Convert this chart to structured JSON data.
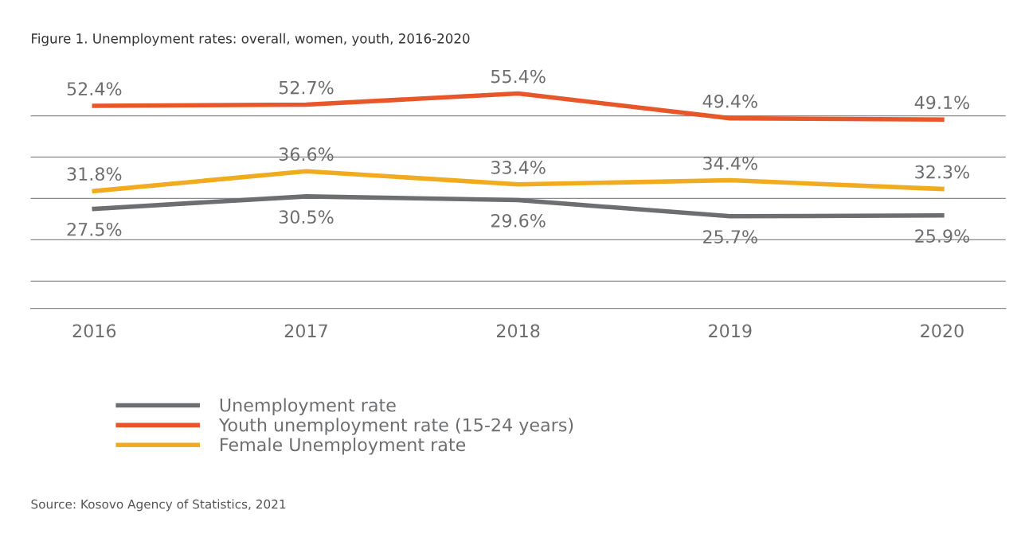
{
  "chart_data": {
    "type": "line",
    "title": "Figure 1. Unemployment rates: overall, women, youth, 2016-2020",
    "categories": [
      "2016",
      "2017",
      "2018",
      "2019",
      "2020"
    ],
    "series": [
      {
        "name": "Unemployment rate",
        "color": "#6d6e70",
        "values": [
          27.5,
          30.5,
          29.6,
          25.7,
          25.9
        ],
        "value_labels": [
          "27.5%",
          "30.5%",
          "29.6%",
          "25.7%",
          "25.9%"
        ]
      },
      {
        "name": "Youth unemployment rate (15-24 years)",
        "color": "#e8572a",
        "values": [
          52.4,
          52.7,
          55.4,
          49.4,
          49.1
        ],
        "value_labels": [
          "52.4%",
          "52.7%",
          "55.4%",
          "49.4%",
          "49.1%"
        ]
      },
      {
        "name": "Female Unemployment rate",
        "color": "#f0ab1e",
        "values": [
          31.8,
          36.6,
          33.4,
          34.4,
          32.3
        ],
        "value_labels": [
          "31.8%",
          "36.6%",
          "33.4%",
          "34.4%",
          "32.3%"
        ]
      }
    ],
    "grid": "y",
    "legend": "bottom left",
    "tick_labels": "x",
    "marker": "none",
    "line_style": "solid",
    "annotations": [
      "Source: Kosovo Agency of Statistics, 2021"
    ]
  }
}
